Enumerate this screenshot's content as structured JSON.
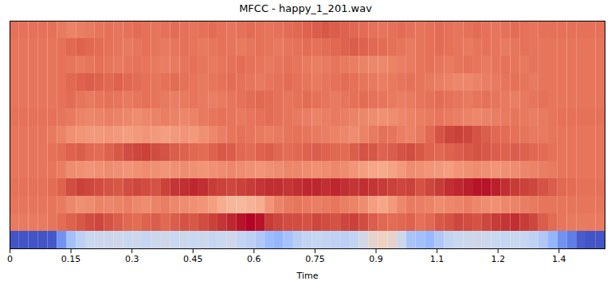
{
  "chart_data": {
    "type": "heatmap",
    "title": "MFCC - happy_1_201.wav",
    "xlabel": "Time",
    "tick_labels": "x",
    "xlim": [
      0,
      1.463
    ],
    "xticks": [
      0,
      0.15,
      0.3,
      0.45,
      0.6,
      0.75,
      0.9,
      {
        "value": 1.05,
        "label": "1.1"
      },
      1.2,
      {
        "value": 1.35,
        "label": "1.4"
      }
    ],
    "zlim": [
      -500,
      500
    ],
    "x": [
      0,
      0.023,
      0.046,
      0.07,
      0.093,
      0.116,
      0.139,
      0.163,
      0.186,
      0.209,
      0.232,
      0.255,
      0.279,
      0.302,
      0.325,
      0.348,
      0.372,
      0.395,
      0.418,
      0.441,
      0.464,
      0.488,
      0.511,
      0.534,
      0.557,
      0.58,
      0.604,
      0.627,
      0.65,
      0.673,
      0.697,
      0.72,
      0.743,
      0.766,
      0.789,
      0.813,
      0.836,
      0.859,
      0.882,
      0.906,
      0.929,
      0.952,
      0.975,
      0.998,
      1.022,
      1.045,
      1.068,
      1.091,
      1.115,
      1.138,
      1.161,
      1.184,
      1.207,
      1.231,
      1.254,
      1.277,
      1.3,
      1.324,
      1.347,
      1.37,
      1.393,
      1.416,
      1.44
    ],
    "values": [
      [
        -480,
        -480,
        -480,
        -480,
        -470,
        -330,
        -190,
        -110,
        -70,
        -60,
        -60,
        -50,
        -70,
        -60,
        -80,
        -60,
        -50,
        -70,
        -60,
        -70,
        -60,
        -80,
        -70,
        -50,
        -90,
        -110,
        -150,
        -210,
        -230,
        -180,
        -120,
        -90,
        -80,
        -90,
        -100,
        -110,
        -90,
        -40,
        30,
        70,
        40,
        -60,
        -170,
        -190,
        -220,
        -150,
        -90,
        -70,
        -60,
        -50,
        -60,
        -70,
        -80,
        -70,
        -80,
        -100,
        -150,
        -230,
        -330,
        -380,
        -460,
        -480,
        -480
      ],
      [
        320,
        320,
        320,
        320,
        330,
        350,
        370,
        390,
        410,
        420,
        400,
        380,
        360,
        350,
        370,
        380,
        360,
        380,
        400,
        390,
        410,
        430,
        450,
        470,
        490,
        500,
        490,
        440,
        420,
        410,
        410,
        400,
        420,
        410,
        400,
        420,
        430,
        410,
        380,
        360,
        350,
        360,
        370,
        340,
        360,
        390,
        400,
        420,
        410,
        400,
        420,
        440,
        450,
        460,
        440,
        420,
        380,
        350,
        330,
        320,
        320,
        320,
        320
      ],
      [
        330,
        330,
        330,
        330,
        330,
        320,
        290,
        270,
        280,
        300,
        290,
        300,
        310,
        290,
        280,
        300,
        310,
        290,
        280,
        270,
        260,
        240,
        200,
        170,
        160,
        180,
        200,
        260,
        300,
        320,
        330,
        320,
        310,
        320,
        330,
        310,
        300,
        280,
        240,
        220,
        250,
        290,
        320,
        310,
        300,
        280,
        290,
        300,
        310,
        290,
        280,
        270,
        290,
        300,
        310,
        320,
        330,
        330,
        330,
        330,
        330,
        330,
        330
      ],
      [
        340,
        340,
        340,
        340,
        350,
        370,
        410,
        430,
        420,
        410,
        400,
        390,
        410,
        420,
        410,
        400,
        430,
        450,
        460,
        470,
        460,
        440,
        430,
        420,
        430,
        440,
        450,
        460,
        460,
        450,
        460,
        470,
        470,
        460,
        470,
        460,
        450,
        460,
        450,
        440,
        430,
        420,
        430,
        400,
        420,
        440,
        460,
        470,
        480,
        490,
        490,
        480,
        460,
        440,
        430,
        420,
        400,
        380,
        360,
        350,
        340,
        340,
        340
      ],
      [
        330,
        330,
        330,
        330,
        330,
        310,
        280,
        270,
        260,
        270,
        280,
        270,
        260,
        270,
        280,
        270,
        260,
        270,
        280,
        270,
        260,
        270,
        280,
        290,
        280,
        270,
        260,
        270,
        280,
        290,
        290,
        280,
        270,
        280,
        290,
        280,
        260,
        240,
        220,
        210,
        230,
        250,
        280,
        270,
        260,
        250,
        240,
        260,
        270,
        280,
        270,
        260,
        270,
        280,
        290,
        300,
        310,
        320,
        330,
        330,
        330,
        330,
        330
      ],
      [
        330,
        330,
        330,
        330,
        340,
        350,
        370,
        380,
        360,
        350,
        370,
        390,
        410,
        420,
        430,
        410,
        400,
        380,
        370,
        360,
        350,
        370,
        390,
        380,
        360,
        350,
        370,
        380,
        360,
        350,
        360,
        370,
        380,
        370,
        360,
        350,
        380,
        400,
        390,
        370,
        380,
        400,
        410,
        390,
        370,
        360,
        370,
        380,
        390,
        400,
        390,
        380,
        370,
        380,
        370,
        360,
        350,
        340,
        330,
        330,
        330,
        330,
        330
      ],
      [
        330,
        330,
        330,
        330,
        320,
        300,
        270,
        260,
        250,
        250,
        260,
        250,
        240,
        250,
        260,
        250,
        240,
        250,
        260,
        250,
        270,
        290,
        310,
        330,
        340,
        330,
        320,
        310,
        320,
        330,
        340,
        330,
        320,
        310,
        300,
        290,
        280,
        300,
        320,
        340,
        330,
        310,
        300,
        320,
        360,
        400,
        420,
        430,
        420,
        400,
        380,
        360,
        350,
        340,
        330,
        320,
        320,
        330,
        330,
        330,
        330,
        330,
        330
      ],
      [
        340,
        340,
        340,
        340,
        340,
        330,
        320,
        300,
        290,
        300,
        310,
        300,
        290,
        280,
        290,
        300,
        310,
        300,
        290,
        300,
        320,
        330,
        340,
        330,
        320,
        330,
        340,
        350,
        340,
        330,
        320,
        310,
        300,
        310,
        320,
        310,
        300,
        290,
        280,
        270,
        280,
        290,
        300,
        310,
        320,
        330,
        320,
        310,
        300,
        290,
        300,
        310,
        320,
        330,
        320,
        310,
        320,
        330,
        340,
        340,
        340,
        340,
        340
      ],
      [
        330,
        330,
        330,
        330,
        330,
        340,
        350,
        330,
        320,
        330,
        340,
        330,
        320,
        330,
        340,
        330,
        320,
        310,
        320,
        330,
        320,
        310,
        320,
        330,
        340,
        350,
        360,
        350,
        340,
        330,
        340,
        350,
        340,
        330,
        320,
        330,
        340,
        350,
        340,
        330,
        320,
        310,
        320,
        330,
        340,
        350,
        340,
        330,
        320,
        330,
        340,
        330,
        320,
        310,
        320,
        330,
        340,
        330,
        330,
        330,
        330,
        330,
        330
      ],
      [
        330,
        330,
        330,
        330,
        330,
        340,
        360,
        370,
        380,
        370,
        360,
        370,
        360,
        350,
        340,
        330,
        340,
        350,
        340,
        330,
        320,
        330,
        340,
        350,
        340,
        330,
        320,
        330,
        340,
        350,
        340,
        330,
        320,
        330,
        340,
        350,
        340,
        330,
        320,
        310,
        320,
        330,
        340,
        330,
        320,
        310,
        300,
        290,
        290,
        300,
        310,
        320,
        330,
        340,
        330,
        320,
        330,
        330,
        330,
        330,
        330,
        330,
        330
      ],
      [
        330,
        330,
        330,
        330,
        330,
        340,
        330,
        320,
        330,
        340,
        330,
        320,
        330,
        340,
        330,
        320,
        310,
        320,
        330,
        340,
        330,
        320,
        330,
        340,
        350,
        340,
        330,
        320,
        330,
        340,
        330,
        320,
        310,
        320,
        330,
        320,
        310,
        300,
        290,
        290,
        300,
        310,
        320,
        330,
        340,
        330,
        320,
        330,
        340,
        330,
        320,
        330,
        340,
        330,
        320,
        330,
        330,
        330,
        330,
        330,
        330,
        330,
        330
      ],
      [
        330,
        330,
        330,
        330,
        330,
        340,
        360,
        370,
        360,
        350,
        340,
        330,
        320,
        330,
        340,
        330,
        320,
        330,
        340,
        330,
        320,
        330,
        340,
        330,
        320,
        330,
        340,
        330,
        320,
        330,
        340,
        350,
        340,
        350,
        360,
        370,
        380,
        370,
        360,
        350,
        340,
        330,
        320,
        330,
        340,
        350,
        340,
        330,
        320,
        330,
        340,
        330,
        320,
        330,
        340,
        330,
        330,
        330,
        330,
        330,
        330,
        330,
        330
      ],
      [
        340,
        340,
        340,
        340,
        340,
        320,
        300,
        310,
        320,
        330,
        340,
        330,
        340,
        350,
        340,
        330,
        340,
        350,
        340,
        330,
        340,
        350,
        340,
        330,
        340,
        350,
        340,
        330,
        340,
        350,
        360,
        370,
        380,
        390,
        380,
        370,
        360,
        350,
        340,
        330,
        340,
        350,
        340,
        330,
        340,
        350,
        340,
        330,
        340,
        350,
        340,
        330,
        340,
        350,
        340,
        330,
        340,
        340,
        340,
        340,
        340,
        340,
        340
      ]
    ]
  }
}
